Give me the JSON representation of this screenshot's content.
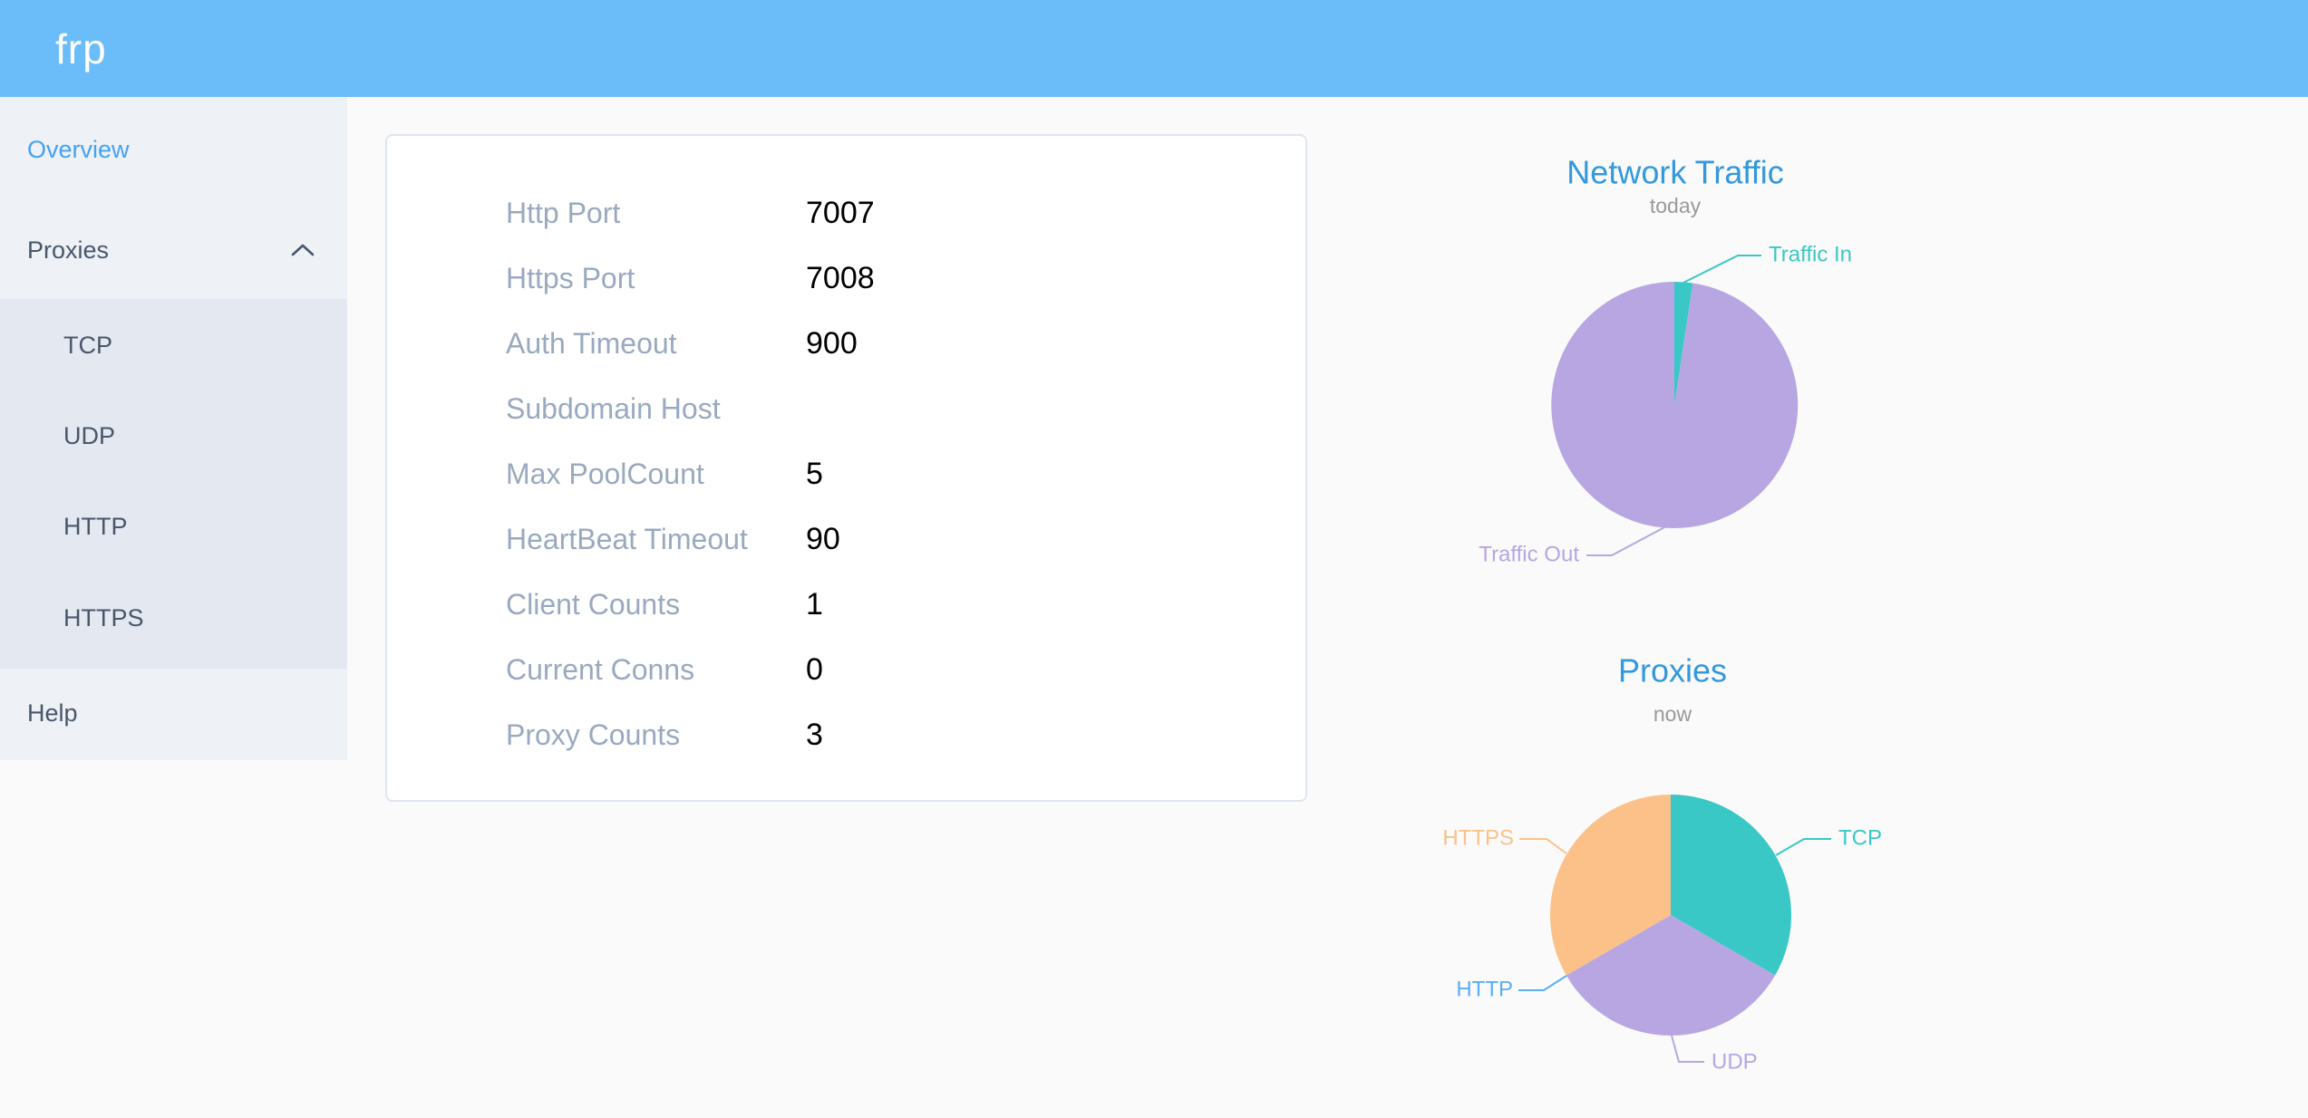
{
  "header": {
    "logo": "frp",
    "background": "#6abdf8"
  },
  "sidebar": {
    "active_color": "#45a2f2",
    "text_color": "#48576a",
    "items": [
      {
        "label": "Overview",
        "active": true
      },
      {
        "label": "Proxies",
        "expanded": true,
        "chevron": "chevron-up",
        "children": [
          {
            "label": "TCP"
          },
          {
            "label": "UDP"
          },
          {
            "label": "HTTP"
          },
          {
            "label": "HTTPS"
          }
        ]
      },
      {
        "label": "Help"
      }
    ]
  },
  "server_info": {
    "rows": [
      {
        "label": "Http Port",
        "value": "7007"
      },
      {
        "label": "Https Port",
        "value": "7008"
      },
      {
        "label": "Auth Timeout",
        "value": "900"
      },
      {
        "label": "Subdomain Host",
        "value": ""
      },
      {
        "label": "Max PoolCount",
        "value": "5"
      },
      {
        "label": "HeartBeat Timeout",
        "value": "90"
      },
      {
        "label": "Client Counts",
        "value": "1"
      },
      {
        "label": "Current Conns",
        "value": "0"
      },
      {
        "label": "Proxy Counts",
        "value": "3"
      }
    ]
  },
  "chart_data": [
    {
      "type": "pie",
      "title": "Network Traffic",
      "subtitle": "today",
      "title_color": "#3398dc",
      "subtitle_color": "#999999",
      "legend": "none",
      "slices": [
        {
          "label": "Traffic In",
          "pct": 2.4,
          "color": "#39c8c6"
        },
        {
          "label": "Traffic Out",
          "pct": 97.6,
          "color": "#b7a6e2"
        }
      ]
    },
    {
      "type": "pie",
      "title": "Proxies",
      "subtitle": "now",
      "title_color": "#3398dc",
      "subtitle_color": "#999999",
      "legend": "none",
      "slices": [
        {
          "label": "TCP",
          "value": 1,
          "pct": 33.33,
          "color": "#39c8c6"
        },
        {
          "label": "UDP",
          "value": 1,
          "pct": 33.33,
          "color": "#b7a6e2"
        },
        {
          "label": "HTTP",
          "value": 0,
          "pct": 0,
          "color": "#5caef2"
        },
        {
          "label": "HTTPS",
          "value": 1,
          "pct": 33.34,
          "color": "#fbc189"
        }
      ]
    }
  ]
}
